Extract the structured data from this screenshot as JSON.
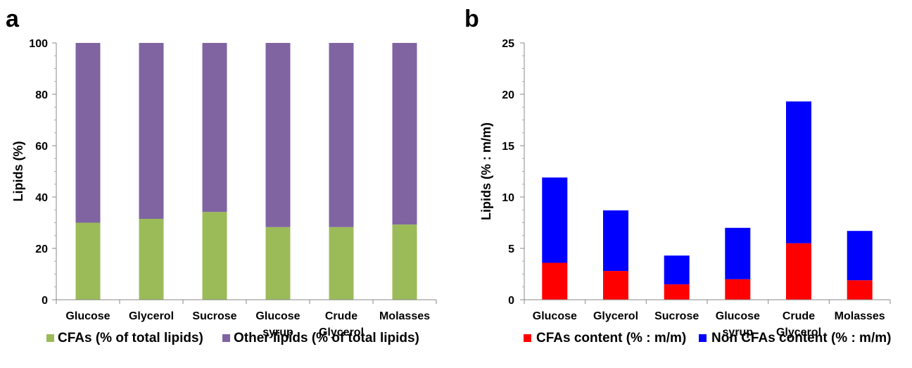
{
  "chart_data": [
    {
      "panel_letter": "a",
      "type": "bar",
      "stacked": true,
      "categories": [
        [
          "Glucose"
        ],
        [
          "Glycerol"
        ],
        [
          "Sucrose"
        ],
        [
          "Glucose",
          "syrup"
        ],
        [
          "Crude",
          "Glycerol"
        ],
        [
          "Molasses"
        ]
      ],
      "series": [
        {
          "name": "CFAs (% of total lipids)",
          "color": "#9bbb59",
          "values": [
            30.0,
            31.5,
            34.2,
            28.3,
            28.3,
            29.3
          ]
        },
        {
          "name": "Other lipids (% of total lipids)",
          "color": "#8064a2",
          "values": [
            70.0,
            68.5,
            65.8,
            71.7,
            71.7,
            70.7
          ]
        }
      ],
      "ylabel": "Lipids (%)",
      "xlabel": "",
      "ylim": [
        0,
        100
      ],
      "yticks": [
        0,
        20,
        40,
        60,
        80,
        100
      ],
      "minor_ticks": true,
      "grid": false,
      "legend_position": "bottom"
    },
    {
      "panel_letter": "b",
      "type": "bar",
      "stacked": true,
      "categories": [
        [
          "Glucose"
        ],
        [
          "Glycerol"
        ],
        [
          "Sucrose"
        ],
        [
          "Glucose",
          "syrup"
        ],
        [
          "Crude",
          "Glycerol"
        ],
        [
          "Molasses"
        ]
      ],
      "series": [
        {
          "name": "CFAs content (% : m/m)",
          "color": "#ff0000",
          "values": [
            3.6,
            2.8,
            1.5,
            2.0,
            5.5,
            1.9
          ]
        },
        {
          "name": "Non CFAs content (% : m/m)",
          "color": "#0000ff",
          "values": [
            8.3,
            5.9,
            2.8,
            5.0,
            13.8,
            4.8
          ]
        }
      ],
      "ylabel": "Lipids (% : m/m)",
      "xlabel": "",
      "ylim": [
        0,
        25
      ],
      "yticks": [
        0,
        5,
        10,
        15,
        20,
        25
      ],
      "minor_ticks": true,
      "grid": false,
      "legend_position": "bottom"
    }
  ]
}
